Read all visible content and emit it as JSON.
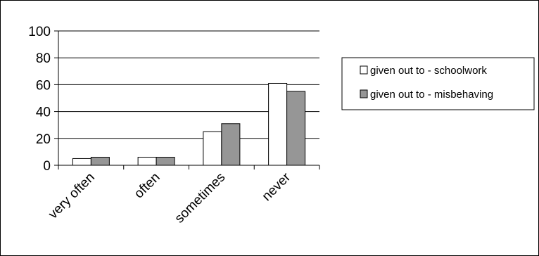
{
  "chart_data": {
    "type": "bar",
    "categories": [
      "very often",
      "often",
      "sometimes",
      "never"
    ],
    "series": [
      {
        "name": "given out to - schoolwork",
        "values": [
          5,
          6,
          25,
          61
        ],
        "color": "#ffffff"
      },
      {
        "name": "given out to - misbehaving",
        "values": [
          6,
          6,
          31,
          55
        ],
        "color": "#969696"
      }
    ],
    "ylim": [
      0,
      100
    ],
    "yticks": [
      "0",
      "20",
      "40",
      "60",
      "80",
      "100"
    ],
    "xlabel": "",
    "ylabel": "",
    "title": "",
    "grid": true,
    "legend": "right"
  }
}
